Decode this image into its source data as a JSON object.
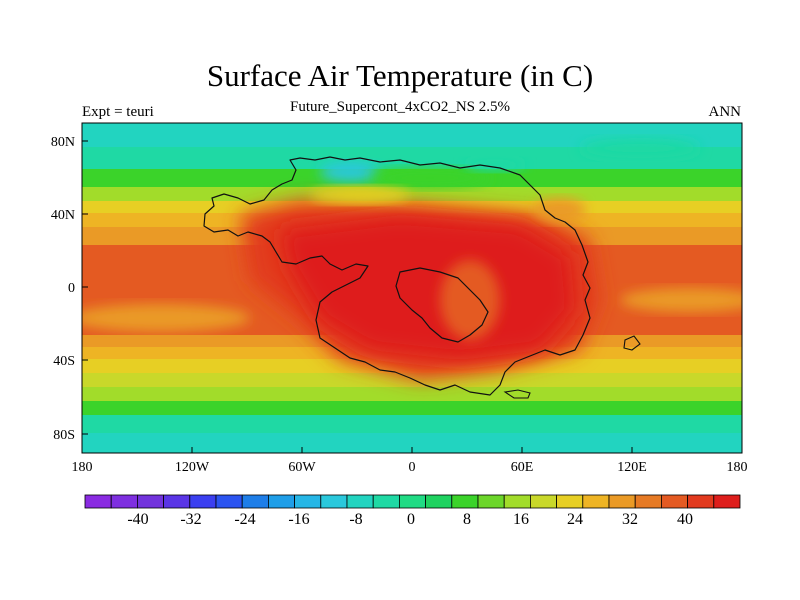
{
  "title": "Surface Air Temperature (in C)",
  "subtitle": "Future_Supercont_4xCO2_NS 2.5%",
  "left_label": "Expt = teuri",
  "right_label": "ANN",
  "map": {
    "lat_ticks": [
      "80N",
      "40N",
      "0",
      "40S",
      "80S"
    ],
    "lon_ticks": [
      "180",
      "120W",
      "60W",
      "0",
      "60E",
      "120E",
      "180"
    ]
  },
  "colorbar": {
    "colors": [
      "#8a2be2",
      "#7e2fe0",
      "#7233dc",
      "#5a35e6",
      "#3b3ff0",
      "#2b54f0",
      "#1e7ee8",
      "#1f9ee8",
      "#26b6e6",
      "#2ac8dc",
      "#22d4c0",
      "#1fd9a4",
      "#20db84",
      "#1fd260",
      "#3bd32a",
      "#6cd62a",
      "#a2dc2a",
      "#c9d82a",
      "#e7cf24",
      "#eeb424",
      "#ea9a26",
      "#e67a24",
      "#e45a22",
      "#e23a1e",
      "#de1e1c"
    ],
    "labels": [
      "-40",
      "-32",
      "-24",
      "-16",
      "-8",
      "0",
      "8",
      "16",
      "24",
      "32",
      "40"
    ]
  }
}
